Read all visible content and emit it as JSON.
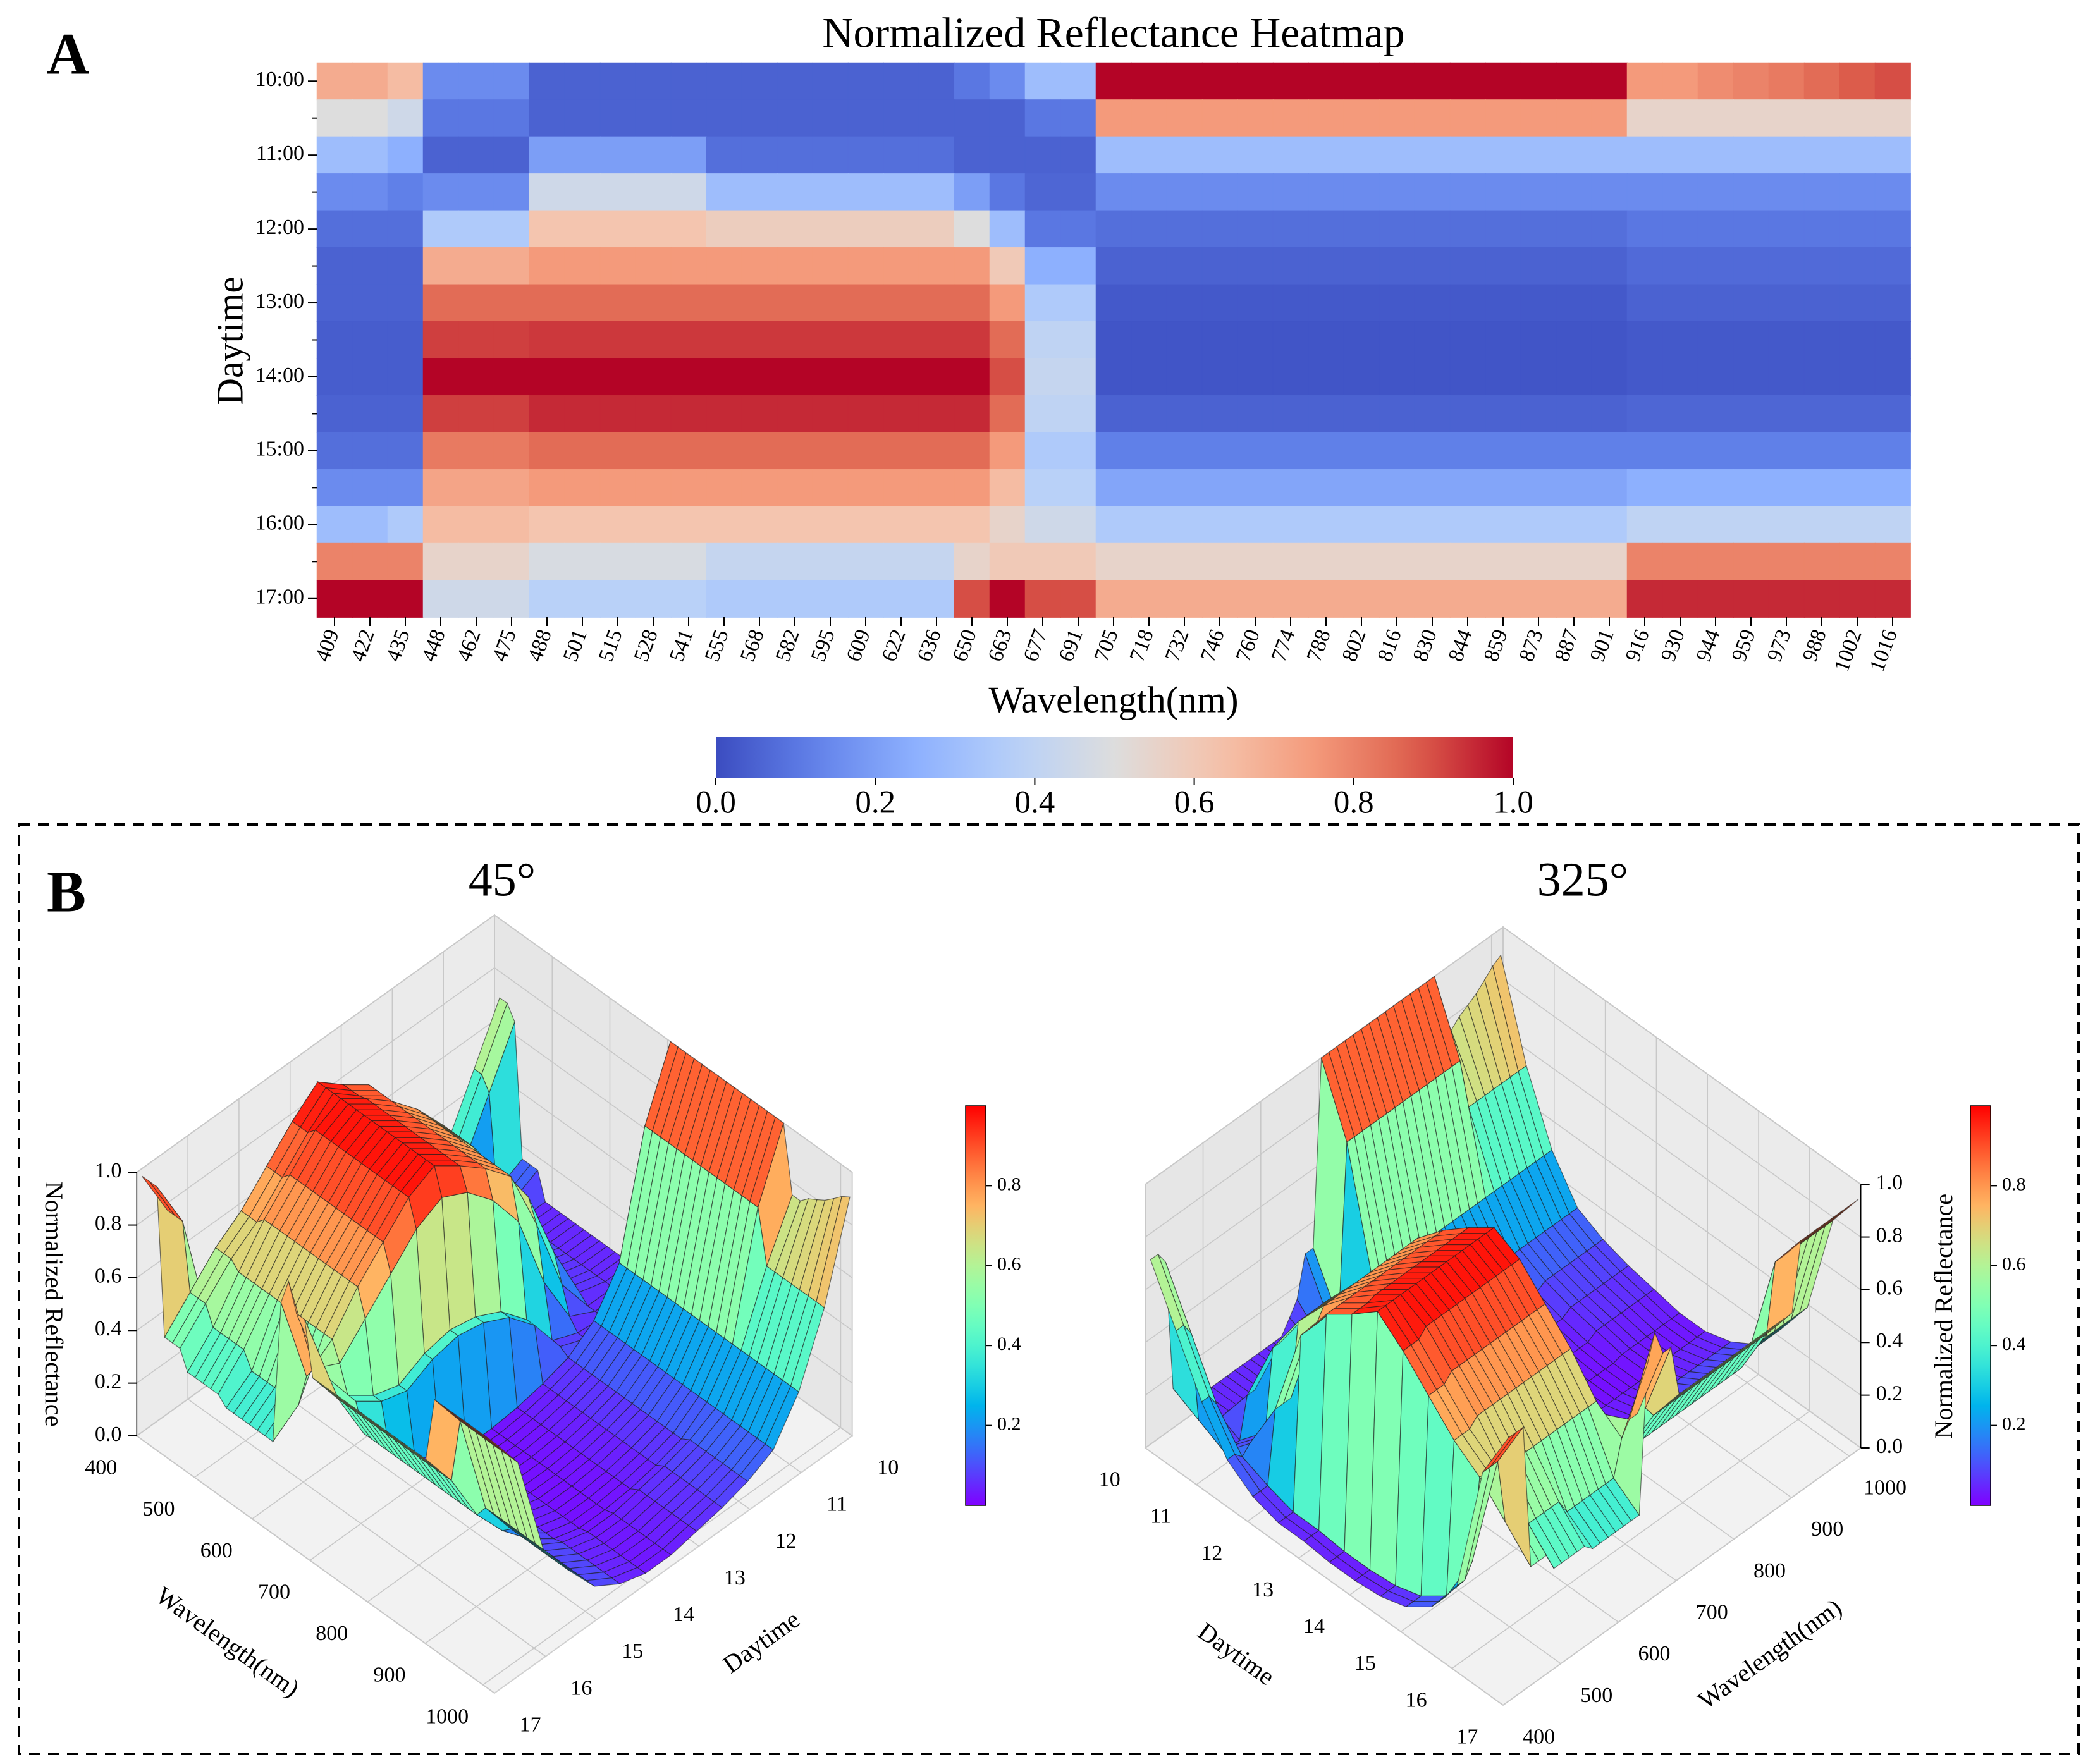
{
  "chart_data": [
    {
      "type": "heatmap",
      "panel": "A",
      "title": "Normalized Reflectance Heatmap",
      "xlabel": "Wavelength(nm)",
      "ylabel": "Daytime",
      "categories": [
        "409",
        "422",
        "435",
        "448",
        "462",
        "475",
        "488",
        "501",
        "515",
        "528",
        "541",
        "555",
        "568",
        "582",
        "595",
        "609",
        "622",
        "636",
        "650",
        "663",
        "677",
        "691",
        "705",
        "718",
        "732",
        "746",
        "760",
        "774",
        "788",
        "802",
        "816",
        "830",
        "844",
        "859",
        "873",
        "887",
        "901",
        "916",
        "930",
        "944",
        "959",
        "973",
        "988",
        "1002",
        "1016"
      ],
      "rows": [
        "10:00",
        null,
        "11:00",
        null,
        "12:00",
        null,
        "13:00",
        null,
        "14:00",
        null,
        "15:00",
        null,
        "16:00",
        null,
        "17:00"
      ],
      "values": [
        [
          0.7,
          0.7,
          0.65,
          0.15,
          0.15,
          0.15,
          0.05,
          0.05,
          0.05,
          0.05,
          0.05,
          0.05,
          0.05,
          0.05,
          0.05,
          0.05,
          0.05,
          0.05,
          0.1,
          0.15,
          0.3,
          0.3,
          1,
          1,
          1,
          1,
          1,
          1,
          1,
          1,
          1,
          1,
          1,
          1,
          1,
          1,
          1,
          0.75,
          0.75,
          0.78,
          0.8,
          0.82,
          0.85,
          0.88,
          0.9
        ],
        [
          0.5,
          0.5,
          0.45,
          0.1,
          0.1,
          0.1,
          0.05,
          0.05,
          0.05,
          0.05,
          0.05,
          0.05,
          0.05,
          0.05,
          0.05,
          0.05,
          0.05,
          0.05,
          0.05,
          0.05,
          0.1,
          0.1,
          0.75,
          0.75,
          0.75,
          0.75,
          0.75,
          0.75,
          0.75,
          0.75,
          0.75,
          0.75,
          0.75,
          0.75,
          0.75,
          0.75,
          0.75,
          0.55,
          0.55,
          0.55,
          0.55,
          0.55,
          0.55,
          0.55,
          0.55
        ],
        [
          0.3,
          0.3,
          0.25,
          0.05,
          0.05,
          0.05,
          0.2,
          0.2,
          0.2,
          0.2,
          0.2,
          0.08,
          0.08,
          0.08,
          0.08,
          0.08,
          0.08,
          0.08,
          0.05,
          0.05,
          0.05,
          0.05,
          0.3,
          0.3,
          0.3,
          0.3,
          0.3,
          0.3,
          0.3,
          0.3,
          0.3,
          0.3,
          0.3,
          0.3,
          0.3,
          0.3,
          0.3,
          0.3,
          0.3,
          0.3,
          0.3,
          0.3,
          0.3,
          0.3,
          0.3
        ],
        [
          0.15,
          0.15,
          0.12,
          0.15,
          0.15,
          0.15,
          0.45,
          0.45,
          0.45,
          0.45,
          0.45,
          0.3,
          0.3,
          0.3,
          0.3,
          0.3,
          0.3,
          0.3,
          0.2,
          0.1,
          0.06,
          0.06,
          0.15,
          0.15,
          0.15,
          0.15,
          0.15,
          0.15,
          0.15,
          0.15,
          0.15,
          0.15,
          0.15,
          0.15,
          0.15,
          0.15,
          0.15,
          0.15,
          0.15,
          0.15,
          0.15,
          0.15,
          0.15,
          0.15,
          0.15
        ],
        [
          0.08,
          0.08,
          0.08,
          0.35,
          0.35,
          0.35,
          0.62,
          0.62,
          0.62,
          0.62,
          0.62,
          0.58,
          0.58,
          0.58,
          0.58,
          0.58,
          0.58,
          0.58,
          0.5,
          0.3,
          0.1,
          0.1,
          0.08,
          0.08,
          0.08,
          0.08,
          0.08,
          0.08,
          0.08,
          0.08,
          0.08,
          0.08,
          0.08,
          0.08,
          0.08,
          0.08,
          0.08,
          0.1,
          0.1,
          0.1,
          0.1,
          0.1,
          0.1,
          0.1,
          0.1
        ],
        [
          0.05,
          0.05,
          0.05,
          0.7,
          0.7,
          0.7,
          0.75,
          0.75,
          0.75,
          0.75,
          0.75,
          0.75,
          0.75,
          0.75,
          0.75,
          0.75,
          0.75,
          0.75,
          0.75,
          0.6,
          0.25,
          0.25,
          0.05,
          0.05,
          0.05,
          0.05,
          0.05,
          0.05,
          0.05,
          0.05,
          0.05,
          0.05,
          0.05,
          0.05,
          0.05,
          0.05,
          0.05,
          0.07,
          0.07,
          0.07,
          0.07,
          0.07,
          0.07,
          0.07,
          0.07
        ],
        [
          0.05,
          0.05,
          0.05,
          0.85,
          0.85,
          0.85,
          0.85,
          0.85,
          0.85,
          0.85,
          0.85,
          0.85,
          0.85,
          0.85,
          0.85,
          0.85,
          0.85,
          0.85,
          0.85,
          0.75,
          0.35,
          0.35,
          0.03,
          0.03,
          0.03,
          0.03,
          0.03,
          0.03,
          0.03,
          0.03,
          0.03,
          0.03,
          0.03,
          0.03,
          0.03,
          0.03,
          0.03,
          0.05,
          0.05,
          0.05,
          0.05,
          0.05,
          0.05,
          0.05,
          0.05
        ],
        [
          0.04,
          0.04,
          0.04,
          0.92,
          0.92,
          0.92,
          0.93,
          0.93,
          0.93,
          0.93,
          0.93,
          0.93,
          0.93,
          0.93,
          0.93,
          0.93,
          0.93,
          0.93,
          0.93,
          0.85,
          0.4,
          0.4,
          0.02,
          0.02,
          0.02,
          0.02,
          0.02,
          0.02,
          0.02,
          0.02,
          0.02,
          0.02,
          0.02,
          0.02,
          0.02,
          0.02,
          0.02,
          0.03,
          0.03,
          0.03,
          0.03,
          0.03,
          0.03,
          0.03,
          0.03
        ],
        [
          0.04,
          0.04,
          0.04,
          1,
          1,
          1,
          1,
          1,
          1,
          1,
          1,
          1,
          1,
          1,
          1,
          1,
          1,
          1,
          1,
          0.9,
          0.42,
          0.42,
          0.02,
          0.02,
          0.02,
          0.02,
          0.02,
          0.02,
          0.02,
          0.02,
          0.02,
          0.02,
          0.02,
          0.02,
          0.02,
          0.02,
          0.02,
          0.03,
          0.03,
          0.03,
          0.03,
          0.03,
          0.03,
          0.03,
          0.03
        ],
        [
          0.05,
          0.05,
          0.05,
          0.92,
          0.92,
          0.92,
          0.95,
          0.95,
          0.95,
          0.95,
          0.95,
          0.95,
          0.95,
          0.95,
          0.95,
          0.95,
          0.95,
          0.95,
          0.95,
          0.85,
          0.4,
          0.4,
          0.05,
          0.05,
          0.05,
          0.05,
          0.05,
          0.05,
          0.05,
          0.05,
          0.05,
          0.05,
          0.05,
          0.05,
          0.05,
          0.05,
          0.05,
          0.06,
          0.06,
          0.06,
          0.06,
          0.06,
          0.06,
          0.06,
          0.06
        ],
        [
          0.08,
          0.08,
          0.08,
          0.82,
          0.82,
          0.82,
          0.85,
          0.85,
          0.85,
          0.85,
          0.85,
          0.85,
          0.85,
          0.85,
          0.85,
          0.85,
          0.85,
          0.85,
          0.85,
          0.75,
          0.35,
          0.35,
          0.12,
          0.12,
          0.12,
          0.12,
          0.12,
          0.12,
          0.12,
          0.12,
          0.12,
          0.12,
          0.12,
          0.12,
          0.12,
          0.12,
          0.12,
          0.12,
          0.12,
          0.12,
          0.12,
          0.12,
          0.12,
          0.12,
          0.12
        ],
        [
          0.15,
          0.15,
          0.15,
          0.72,
          0.72,
          0.72,
          0.75,
          0.75,
          0.75,
          0.75,
          0.75,
          0.75,
          0.75,
          0.75,
          0.75,
          0.75,
          0.75,
          0.75,
          0.75,
          0.65,
          0.38,
          0.38,
          0.22,
          0.22,
          0.22,
          0.22,
          0.22,
          0.22,
          0.22,
          0.22,
          0.22,
          0.22,
          0.22,
          0.22,
          0.22,
          0.22,
          0.22,
          0.25,
          0.25,
          0.25,
          0.25,
          0.25,
          0.25,
          0.25,
          0.25
        ],
        [
          0.3,
          0.3,
          0.35,
          0.65,
          0.65,
          0.65,
          0.62,
          0.62,
          0.62,
          0.62,
          0.62,
          0.62,
          0.62,
          0.62,
          0.62,
          0.62,
          0.62,
          0.62,
          0.62,
          0.55,
          0.45,
          0.45,
          0.35,
          0.35,
          0.35,
          0.35,
          0.35,
          0.35,
          0.35,
          0.35,
          0.35,
          0.35,
          0.35,
          0.35,
          0.35,
          0.35,
          0.35,
          0.4,
          0.4,
          0.4,
          0.4,
          0.4,
          0.4,
          0.4,
          0.4
        ],
        [
          0.8,
          0.8,
          0.8,
          0.55,
          0.55,
          0.55,
          0.48,
          0.48,
          0.48,
          0.48,
          0.48,
          0.42,
          0.42,
          0.42,
          0.42,
          0.42,
          0.42,
          0.42,
          0.55,
          0.6,
          0.6,
          0.6,
          0.55,
          0.55,
          0.55,
          0.55,
          0.55,
          0.55,
          0.55,
          0.55,
          0.55,
          0.55,
          0.55,
          0.55,
          0.55,
          0.55,
          0.55,
          0.8,
          0.8,
          0.8,
          0.8,
          0.8,
          0.8,
          0.8,
          0.8
        ],
        [
          1,
          1,
          1,
          0.45,
          0.45,
          0.45,
          0.38,
          0.38,
          0.38,
          0.38,
          0.38,
          0.35,
          0.35,
          0.35,
          0.35,
          0.35,
          0.35,
          0.35,
          0.9,
          1,
          0.9,
          0.9,
          0.7,
          0.7,
          0.7,
          0.7,
          0.7,
          0.7,
          0.7,
          0.7,
          0.7,
          0.7,
          0.7,
          0.7,
          0.7,
          0.7,
          0.7,
          0.95,
          0.95,
          0.95,
          0.95,
          0.95,
          0.95,
          0.95,
          0.95
        ]
      ],
      "colormap": "coolwarm",
      "clim": [
        0,
        1
      ],
      "colorbar_ticks": [
        {
          "value": 0,
          "label": "0.0"
        },
        0.2,
        0.4,
        0.6,
        0.8,
        {
          "value": 1,
          "label": "1.0"
        }
      ]
    },
    {
      "type": "surface3d",
      "panel": "B",
      "title": "45°",
      "xlabel": "Wavelength(nm)",
      "ylabel": "Daytime",
      "zlabel": "Normalized Reflectance",
      "xlim": [
        400,
        1020
      ],
      "xticks": [
        400,
        500,
        600,
        700,
        800,
        900,
        1000
      ],
      "ylim": [
        10,
        17
      ],
      "yticks": [
        10,
        11,
        12,
        13,
        14,
        15,
        16,
        17
      ],
      "zlim": [
        0,
        1
      ],
      "zticks": [
        {
          "value": 0,
          "label": "0.0"
        },
        0.2,
        0.4,
        0.6,
        0.8,
        {
          "value": 1,
          "label": "1.0"
        }
      ],
      "colormap": "rainbow",
      "clim": [
        0,
        1
      ],
      "colorbar_ticks": [
        0.2,
        0.4,
        0.6,
        0.8
      ]
    },
    {
      "type": "surface3d",
      "title": "325°",
      "xlabel": "Wavelength(nm)",
      "ylabel": "Daytime",
      "zlabel": "Normalized Reflectance",
      "xlim": [
        400,
        1020
      ],
      "xticks": [
        400,
        500,
        600,
        700,
        800,
        900,
        1000
      ],
      "ylim": [
        10,
        17
      ],
      "yticks": [
        10,
        11,
        12,
        13,
        14,
        15,
        16,
        17
      ],
      "zlim": [
        0,
        1
      ],
      "zticks": [
        {
          "value": 0,
          "label": "0.0"
        },
        0.2,
        0.4,
        0.6,
        0.8,
        {
          "value": 1,
          "label": "1.0"
        }
      ],
      "colormap": "rainbow",
      "clim": [
        0,
        1
      ],
      "colorbar_ticks": [
        0.2,
        0.4,
        0.6,
        0.8
      ]
    }
  ]
}
